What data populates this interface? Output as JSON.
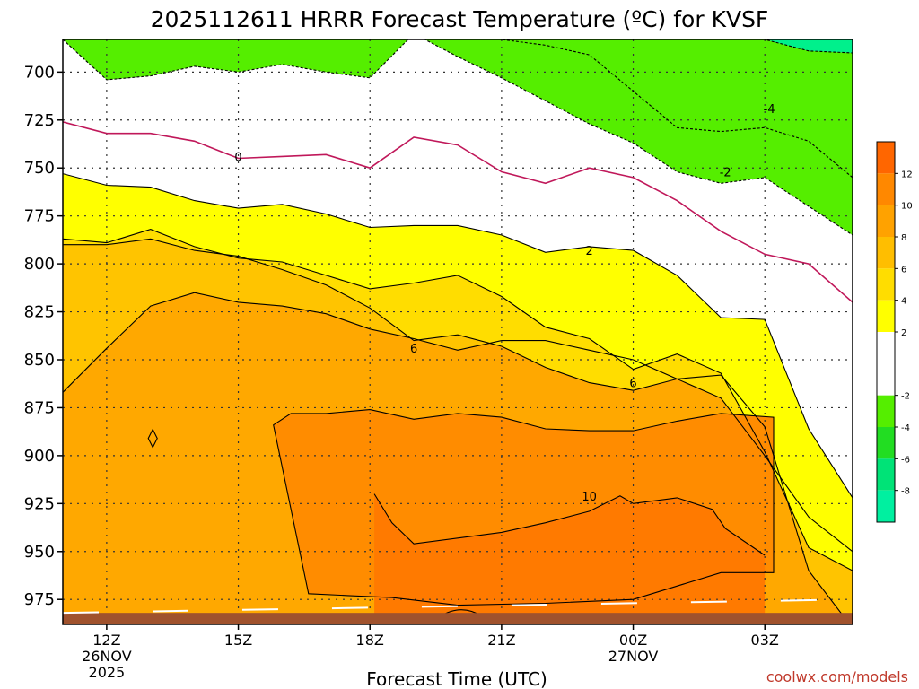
{
  "chart_data": {
    "type": "contour",
    "title": "2025112611 HRRR Forecast Temperature (ºC) for KVSF",
    "xlabel": "Forecast Time (UTC)",
    "credit": "coolwx.com/models",
    "x_ticks": [
      {
        "hour": 1,
        "label": "12Z",
        "sub1": "26NOV",
        "sub2": "2025"
      },
      {
        "hour": 4,
        "label": "15Z",
        "sub1": "",
        "sub2": ""
      },
      {
        "hour": 7,
        "label": "18Z",
        "sub1": "",
        "sub2": ""
      },
      {
        "hour": 10,
        "label": "21Z",
        "sub1": "",
        "sub2": ""
      },
      {
        "hour": 13,
        "label": "00Z",
        "sub1": "27NOV",
        "sub2": ""
      },
      {
        "hour": 16,
        "label": "03Z",
        "sub1": "",
        "sub2": ""
      }
    ],
    "xlim": [
      0,
      18
    ],
    "ylabel": "",
    "y_ticks": [
      700,
      725,
      750,
      775,
      800,
      825,
      850,
      875,
      900,
      925,
      950,
      975
    ],
    "ylim": [
      683,
      988
    ],
    "y_units": "hPa",
    "hours": [
      0,
      1,
      2,
      3,
      4,
      5,
      6,
      7,
      8,
      9,
      10,
      11,
      12,
      13,
      14,
      15,
      16,
      17,
      18
    ],
    "isotherms": [
      {
        "temp": 8,
        "p": [
          867,
          844,
          822,
          815,
          820,
          822,
          826,
          834,
          839,
          845,
          840,
          840,
          845,
          850,
          860,
          858,
          885,
          960,
          990
        ]
      },
      {
        "temp": 6,
        "p": [
          790,
          790,
          787,
          793,
          796,
          803,
          811,
          823,
          840,
          837,
          843,
          854,
          862,
          866,
          860,
          870,
          900,
          932,
          950
        ]
      },
      {
        "temp": 4,
        "p": [
          787,
          789,
          782,
          791,
          797,
          799,
          806,
          813,
          810,
          806,
          817,
          833,
          839,
          855,
          847,
          857,
          898,
          948,
          960
        ]
      },
      {
        "temp": 2,
        "p": [
          753,
          759,
          760,
          767,
          771,
          769,
          774,
          781,
          780,
          780,
          785,
          794,
          791,
          793,
          806,
          828,
          829,
          886,
          922
        ]
      },
      {
        "temp": 0,
        "p": [
          726,
          732,
          732,
          736,
          745,
          744,
          743,
          750,
          734,
          738,
          752,
          758,
          750,
          755,
          767,
          783,
          795,
          800,
          820
        ]
      },
      {
        "temp": -2,
        "p": [
          683,
          704,
          702,
          697,
          700,
          696,
          700,
          703,
          680,
          692,
          703,
          715,
          727,
          737,
          752,
          758,
          755,
          770,
          785
        ]
      },
      {
        "temp": -4,
        "p": [
          683,
          683,
          683,
          683,
          683,
          683,
          683,
          683,
          683,
          683,
          683,
          686,
          691,
          710,
          729,
          731,
          729,
          736,
          755
        ]
      },
      {
        "temp": -6,
        "p": [
          683,
          683,
          683,
          683,
          683,
          683,
          683,
          683,
          683,
          683,
          683,
          683,
          683,
          683,
          683,
          683,
          683,
          689,
          690
        ]
      }
    ],
    "warm_core": {
      "temp": 10,
      "top_p": [
        884,
        878,
        878,
        876,
        881,
        878,
        880,
        886,
        887,
        887,
        882,
        878,
        880
      ],
      "top_hour": [
        4.8,
        5.2,
        6,
        7,
        8,
        9,
        10,
        11,
        12,
        13,
        14,
        15,
        16.2
      ],
      "bottom_p": [
        938,
        961,
        961,
        961,
        975,
        977,
        978,
        974,
        973,
        972
      ],
      "bottom_hour": [
        16.2,
        16.2,
        15.5,
        15,
        13,
        11,
        9,
        7.5,
        6.5,
        5.6
      ]
    },
    "core_12": {
      "temp": 12,
      "top_p": [
        920,
        935,
        946,
        943,
        940,
        935,
        929,
        921,
        925,
        922,
        928,
        938,
        952
      ],
      "top_hour": [
        7.1,
        7.5,
        8,
        9,
        10,
        11,
        12,
        12.7,
        13,
        14,
        14.8,
        15.1,
        16
      ]
    },
    "labeled_contours": [
      {
        "text": "0",
        "hour": 4,
        "p": 744
      },
      {
        "text": "2",
        "hour": 12,
        "p": 793
      },
      {
        "text": "-2",
        "hour": 15.1,
        "p": 752
      },
      {
        "text": "-4",
        "hour": 16.1,
        "p": 719
      },
      {
        "text": "6",
        "hour": 8,
        "p": 844
      },
      {
        "text": "6",
        "hour": 13,
        "p": 862
      },
      {
        "text": "10",
        "hour": 12,
        "p": 921
      }
    ],
    "ground_p": 982,
    "colorbar": {
      "ticks": [
        12,
        10,
        8,
        6,
        4,
        2,
        -2,
        -4,
        -6,
        -8
      ],
      "bands": [
        {
          "lo": 12,
          "hi": 14,
          "color": "#ff6600"
        },
        {
          "lo": 10,
          "hi": 12,
          "color": "#ff8800"
        },
        {
          "lo": 8,
          "hi": 10,
          "color": "#ffa200"
        },
        {
          "lo": 6,
          "hi": 8,
          "color": "#ffbe00"
        },
        {
          "lo": 4,
          "hi": 6,
          "color": "#ffdd00"
        },
        {
          "lo": 2,
          "hi": 4,
          "color": "#ffff00"
        },
        {
          "lo": 0,
          "hi": 2,
          "color": "#ffffff"
        },
        {
          "lo": -2,
          "hi": 0,
          "color": "#ffffff"
        },
        {
          "lo": -4,
          "hi": -2,
          "color": "#55ee00"
        },
        {
          "lo": -6,
          "hi": -4,
          "color": "#22dd22"
        },
        {
          "lo": -8,
          "hi": -6,
          "color": "#00e377"
        },
        {
          "lo": -10,
          "hi": -8,
          "color": "#00f0a0"
        }
      ]
    }
  },
  "colors": {
    "below_minus2": "#55ee00",
    "below_minus6": "#00f08c",
    "minus2_to_2": "#ffffff",
    "from_2": "#ffff00",
    "from_4": "#ffdd00",
    "from_6": "#ffc400",
    "from_8": "#ffa800",
    "from_10": "#ff8c00",
    "from_12": "#ff7a00",
    "ground": "#a0522d",
    "zero_line": "#c0185a"
  }
}
